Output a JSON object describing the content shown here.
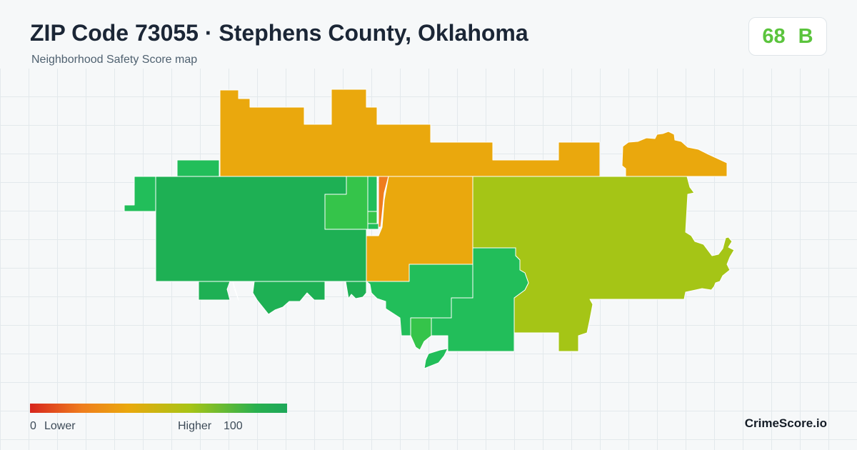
{
  "header": {
    "title": "ZIP Code 73055 · Stephens County, Oklahoma",
    "subtitle": "Neighborhood Safety Score map"
  },
  "score": {
    "value": "68",
    "grade": "B",
    "color": "#5bc43d"
  },
  "legend": {
    "min_value": "0",
    "min_label": "Lower",
    "max_label": "Higher",
    "max_value": "100",
    "colors": [
      "#d7261e",
      "#ef7d1e",
      "#eaa80d",
      "#a8c416",
      "#29b04f",
      "#1ea85a"
    ]
  },
  "brand": "CrimeScore.io",
  "map_colors": {
    "orange": "#eaa80d",
    "dark_green": "#1eb054",
    "light_green": "#22be5a",
    "bright_green": "#35c44a",
    "yellow_green": "#a5c516",
    "red_orange": "#ef7d1e"
  }
}
